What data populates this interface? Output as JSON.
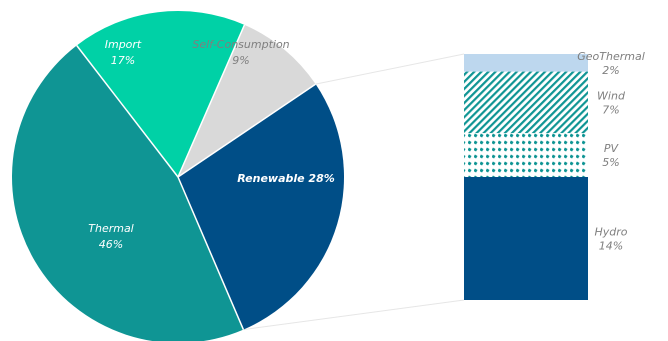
{
  "chart_data": [
    {
      "type": "pie",
      "slices": [
        {
          "label": "Renewable",
          "value": 28,
          "pct_text": "28%",
          "color": "#004e87"
        },
        {
          "label": "Thermal",
          "value": 46,
          "pct_text": "46%",
          "color": "#0f9594"
        },
        {
          "label": "Import",
          "value": 17,
          "pct_text": "17%",
          "color": "#00d1a6"
        },
        {
          "label": "Self-Consumption",
          "value": 9,
          "pct_text": "9%",
          "color": "#d9d9d9"
        }
      ]
    },
    {
      "type": "bar",
      "stacked": true,
      "segments": [
        {
          "label": "Hydro",
          "value": 14,
          "pct_text": "14%",
          "fill": "solid",
          "color": "#004e87"
        },
        {
          "label": "PV",
          "value": 5,
          "pct_text": "5%",
          "fill": "dotted-pattern",
          "color": "#0f9594"
        },
        {
          "label": "Wind",
          "value": 7,
          "pct_text": "7%",
          "fill": "diagonal-pattern",
          "color": "#0f9594"
        },
        {
          "label": "GeoThermal",
          "value": 2,
          "pct_text": "2%",
          "fill": "solid",
          "color": "#bdd7ee"
        }
      ]
    }
  ]
}
